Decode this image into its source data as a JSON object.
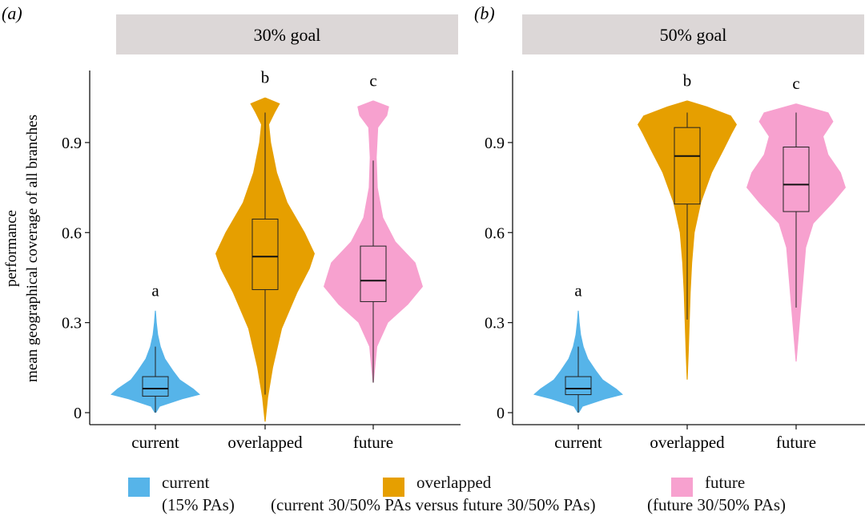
{
  "colors": {
    "current": "#56b4e9",
    "overlapped": "#e69f00",
    "future": "#f7a1cf",
    "strip": "#dcd7d7"
  },
  "y_axis_label_line1": "performance",
  "y_axis_label_line2": "mean geographical coverage of all branches",
  "legend": [
    {
      "key": "current",
      "name": "current",
      "note": "(15% PAs)"
    },
    {
      "key": "overlapped",
      "name": "overlapped",
      "note": "(current 30/50% PAs versus future 30/50% PAs)"
    },
    {
      "key": "future",
      "name": "future",
      "note": "(future 30/50% PAs)"
    }
  ],
  "chart_data": [
    {
      "type": "violin",
      "panel_tag": "(a)",
      "title": "30% goal",
      "ylabel": "performance\nmean geographical coverage of all branches",
      "ylim": [
        -0.04,
        1.14
      ],
      "yticks": [
        0,
        0.3,
        0.6,
        0.9
      ],
      "ytick_labels": [
        "0",
        "0.3",
        "0.6",
        "0.9"
      ],
      "categories": [
        "current",
        "overlapped",
        "future"
      ],
      "letters": [
        "a",
        "b",
        "c"
      ],
      "boxes": [
        {
          "category": "current",
          "whisker_low": 0.0,
          "q1": 0.055,
          "median": 0.08,
          "q3": 0.12,
          "whisker_high": 0.22
        },
        {
          "category": "overlapped",
          "whisker_low": 0.06,
          "q1": 0.41,
          "median": 0.52,
          "q3": 0.645,
          "whisker_high": 1.0
        },
        {
          "category": "future",
          "whisker_low": 0.1,
          "q1": 0.37,
          "median": 0.44,
          "q3": 0.555,
          "whisker_high": 0.84
        }
      ],
      "violins": [
        {
          "category": "current",
          "profile": [
            [
              0.0,
              0.02
            ],
            [
              0.02,
              0.1
            ],
            [
              0.045,
              0.6
            ],
            [
              0.06,
              1.0
            ],
            [
              0.08,
              0.85
            ],
            [
              0.11,
              0.55
            ],
            [
              0.14,
              0.4
            ],
            [
              0.18,
              0.22
            ],
            [
              0.22,
              0.12
            ],
            [
              0.26,
              0.06
            ],
            [
              0.3,
              0.03
            ],
            [
              0.34,
              0.01
            ]
          ]
        },
        {
          "category": "overlapped",
          "profile": [
            [
              -0.03,
              0.01
            ],
            [
              0.05,
              0.06
            ],
            [
              0.15,
              0.16
            ],
            [
              0.28,
              0.34
            ],
            [
              0.4,
              0.65
            ],
            [
              0.48,
              0.9
            ],
            [
              0.53,
              1.0
            ],
            [
              0.6,
              0.8
            ],
            [
              0.7,
              0.45
            ],
            [
              0.8,
              0.24
            ],
            [
              0.9,
              0.12
            ],
            [
              0.96,
              0.08
            ],
            [
              1.0,
              0.2
            ],
            [
              1.03,
              0.3
            ],
            [
              1.05,
              0.01
            ]
          ]
        },
        {
          "category": "future",
          "profile": [
            [
              0.1,
              0.01
            ],
            [
              0.15,
              0.04
            ],
            [
              0.22,
              0.08
            ],
            [
              0.3,
              0.3
            ],
            [
              0.36,
              0.7
            ],
            [
              0.42,
              1.0
            ],
            [
              0.5,
              0.85
            ],
            [
              0.57,
              0.45
            ],
            [
              0.65,
              0.2
            ],
            [
              0.75,
              0.09
            ],
            [
              0.85,
              0.07
            ],
            [
              0.95,
              0.1
            ],
            [
              0.99,
              0.28
            ],
            [
              1.02,
              0.32
            ],
            [
              1.04,
              0.01
            ]
          ]
        }
      ]
    },
    {
      "type": "violin",
      "panel_tag": "(b)",
      "title": "50% goal",
      "ylim": [
        -0.04,
        1.14
      ],
      "yticks": [
        0,
        0.3,
        0.6,
        0.9
      ],
      "ytick_labels": [
        "0",
        "0.3",
        "0.6",
        "0.9"
      ],
      "categories": [
        "current",
        "overlapped",
        "future"
      ],
      "letters": [
        "a",
        "b",
        "c"
      ],
      "boxes": [
        {
          "category": "current",
          "whisker_low": 0.0,
          "q1": 0.06,
          "median": 0.08,
          "q3": 0.12,
          "whisker_high": 0.22
        },
        {
          "category": "overlapped",
          "whisker_low": 0.31,
          "q1": 0.695,
          "median": 0.855,
          "q3": 0.95,
          "whisker_high": 1.0
        },
        {
          "category": "future",
          "whisker_low": 0.35,
          "q1": 0.67,
          "median": 0.76,
          "q3": 0.885,
          "whisker_high": 1.0
        }
      ],
      "violins": [
        {
          "category": "current",
          "profile": [
            [
              0.0,
              0.02
            ],
            [
              0.02,
              0.1
            ],
            [
              0.045,
              0.6
            ],
            [
              0.06,
              1.0
            ],
            [
              0.08,
              0.85
            ],
            [
              0.11,
              0.55
            ],
            [
              0.14,
              0.4
            ],
            [
              0.18,
              0.22
            ],
            [
              0.22,
              0.12
            ],
            [
              0.26,
              0.06
            ],
            [
              0.3,
              0.03
            ],
            [
              0.34,
              0.01
            ]
          ]
        },
        {
          "category": "overlapped",
          "profile": [
            [
              0.11,
              0.01
            ],
            [
              0.2,
              0.03
            ],
            [
              0.3,
              0.05
            ],
            [
              0.4,
              0.07
            ],
            [
              0.5,
              0.1
            ],
            [
              0.6,
              0.15
            ],
            [
              0.7,
              0.28
            ],
            [
              0.8,
              0.5
            ],
            [
              0.88,
              0.75
            ],
            [
              0.93,
              0.9
            ],
            [
              0.96,
              1.0
            ],
            [
              0.99,
              0.88
            ],
            [
              1.02,
              0.4
            ],
            [
              1.04,
              0.01
            ]
          ]
        },
        {
          "category": "future",
          "profile": [
            [
              0.17,
              0.01
            ],
            [
              0.25,
              0.05
            ],
            [
              0.35,
              0.1
            ],
            [
              0.45,
              0.15
            ],
            [
              0.55,
              0.2
            ],
            [
              0.63,
              0.35
            ],
            [
              0.7,
              0.75
            ],
            [
              0.75,
              1.0
            ],
            [
              0.8,
              0.9
            ],
            [
              0.86,
              0.65
            ],
            [
              0.92,
              0.55
            ],
            [
              0.97,
              0.75
            ],
            [
              1.0,
              0.65
            ],
            [
              1.03,
              0.01
            ]
          ]
        }
      ]
    }
  ]
}
